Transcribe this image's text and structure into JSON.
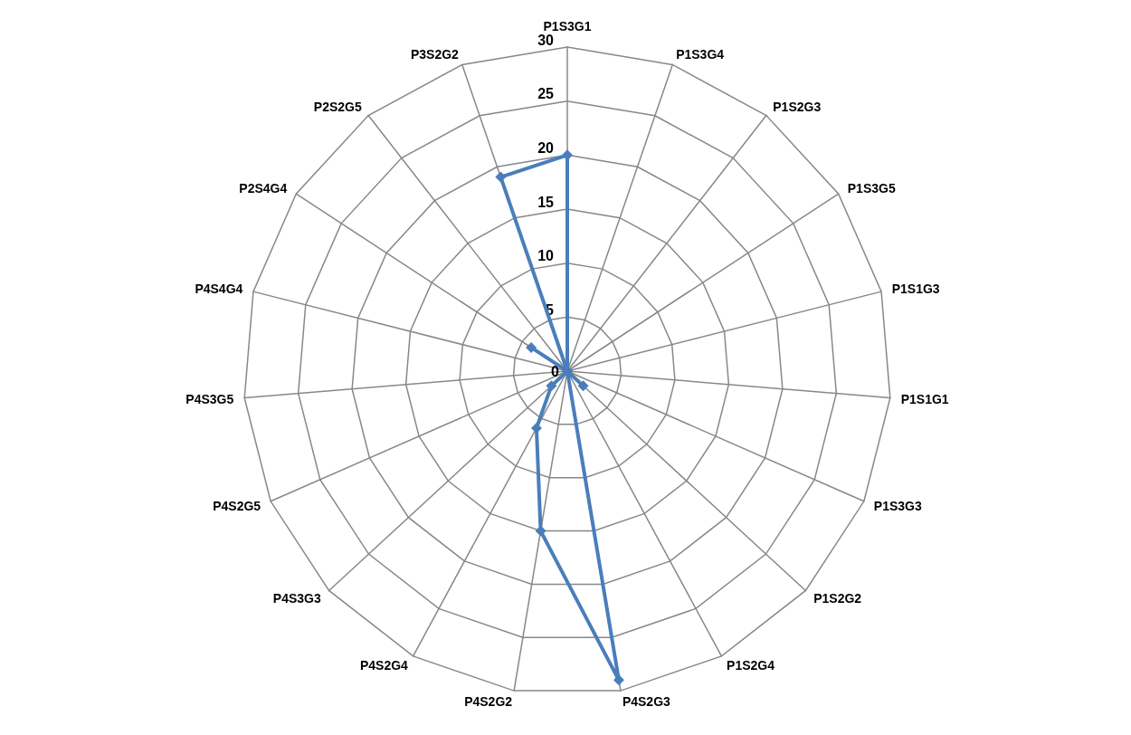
{
  "chart_data": {
    "type": "radar",
    "categories": [
      "P1S3G1",
      "P1S3G4",
      "P1S2G3",
      "P1S3G5",
      "P1S1G3",
      "P1S1G1",
      "P1S3G3",
      "P1S2G2",
      "P1S2G4",
      "P4S2G3",
      "P4S2G2",
      "P4S2G4",
      "P4S3G3",
      "P4S2G5",
      "P4S3G5",
      "P4S4G4",
      "P2S4G4",
      "P2S2G5",
      "P3S2G2"
    ],
    "series": [
      {
        "color": "#4a7ebb",
        "values": [
          20,
          0,
          0,
          0,
          0,
          0,
          0,
          2,
          0,
          29,
          15,
          6,
          2,
          0,
          0,
          0,
          4,
          0,
          19
        ]
      }
    ],
    "ylim": [
      0,
      30
    ],
    "yticks": [
      0,
      5,
      10,
      15,
      20,
      25,
      30
    ],
    "marker": "diamond",
    "grid": true
  }
}
